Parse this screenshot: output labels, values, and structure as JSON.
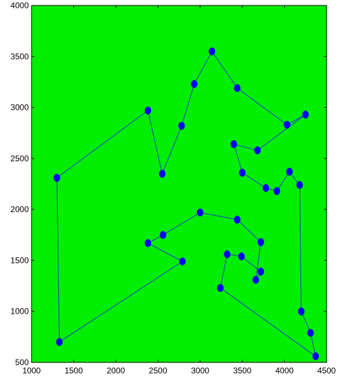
{
  "chart_data": {
    "type": "line",
    "title": "",
    "xlabel": "",
    "ylabel": "",
    "xlim": [
      1000,
      4500
    ],
    "ylim": [
      500,
      4000
    ],
    "x_ticks": [
      1000,
      1500,
      2000,
      2500,
      3000,
      3500,
      4000,
      4500
    ],
    "y_ticks": [
      500,
      1000,
      1500,
      2000,
      2500,
      3000,
      3500,
      4000
    ],
    "x_tick_labels": [
      "1000",
      "1500",
      "2000",
      "2500",
      "3000",
      "3500",
      "4000",
      "4500"
    ],
    "y_tick_labels": [
      "500",
      "1000",
      "1500",
      "2000",
      "2500",
      "3000",
      "3500",
      "4000"
    ],
    "grid": false,
    "legend": "none",
    "background_color": "#00ee00",
    "line_color": "#1f3dc8",
    "marker_color": "#0000ff",
    "series": [
      {
        "x": [
          1300,
          2380,
          2550,
          2780,
          2930,
          3140,
          3440,
          4030,
          4250,
          3680,
          3400,
          3500,
          3780,
          3910,
          4060,
          4180,
          4200,
          4310,
          4370,
          3240,
          3320,
          3490,
          3720,
          3660,
          3720,
          3440,
          3000,
          2560,
          2380,
          2790,
          1330,
          1300
        ],
        "y": [
          2310,
          2970,
          2350,
          2820,
          3230,
          3550,
          3190,
          2830,
          2930,
          2580,
          2640,
          2360,
          2210,
          2180,
          2370,
          2240,
          1000,
          790,
          560,
          1230,
          1560,
          1540,
          1390,
          1310,
          1680,
          1900,
          1970,
          1750,
          1670,
          1490,
          700,
          2310
        ]
      }
    ]
  }
}
